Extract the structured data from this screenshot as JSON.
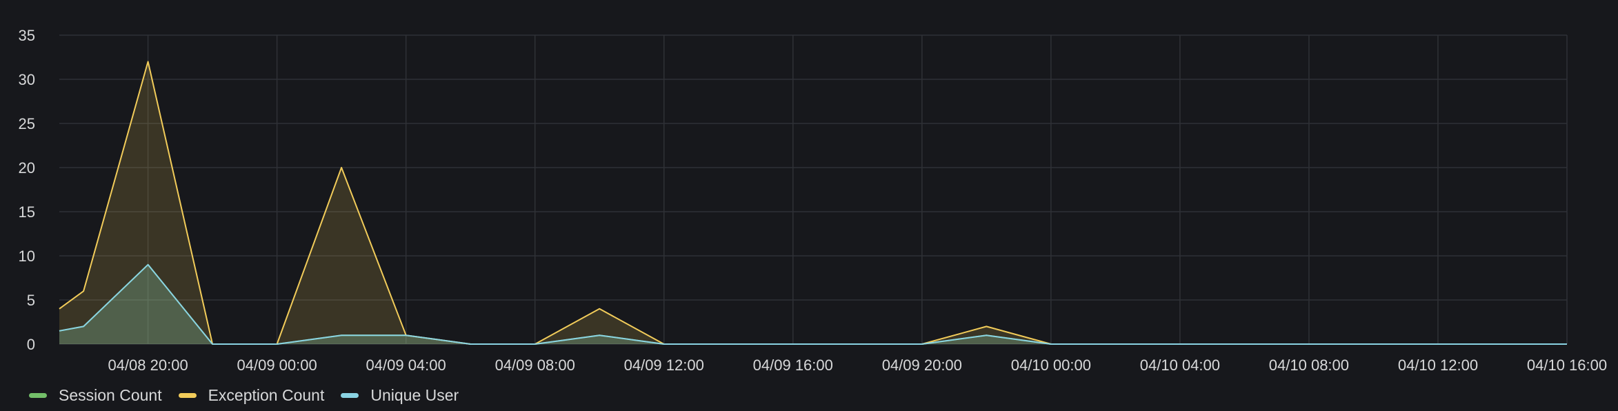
{
  "chart_data": {
    "type": "area",
    "title": "",
    "xlabel": "",
    "ylabel": "",
    "ylim": [
      0,
      35
    ],
    "yticks": [
      "0",
      "5",
      "10",
      "15",
      "20",
      "25",
      "30",
      "35"
    ],
    "xticks": [
      "04/08 20:00",
      "04/09 00:00",
      "04/09 04:00",
      "04/09 08:00",
      "04/09 12:00",
      "04/09 16:00",
      "04/09 20:00",
      "04/10 00:00",
      "04/10 04:00",
      "04/10 08:00",
      "04/10 12:00",
      "04/10 16:00"
    ],
    "x": [
      "04/08 17:15",
      "04/08 18:00",
      "04/08 20:00",
      "04/08 22:00",
      "04/09 00:00",
      "04/09 02:00",
      "04/09 04:00",
      "04/09 06:00",
      "04/09 08:00",
      "04/09 10:00",
      "04/09 12:00",
      "04/09 14:00",
      "04/09 16:00",
      "04/09 18:00",
      "04/09 20:00",
      "04/09 22:00",
      "04/10 00:00",
      "04/10 02:00",
      "04/10 04:00",
      "04/10 06:00",
      "04/10 08:00",
      "04/10 10:00",
      "04/10 12:00",
      "04/10 14:00",
      "04/10 16:00"
    ],
    "grid": true,
    "legend_position": "bottom-left",
    "series": [
      {
        "name": "Session Count",
        "color": "#73bf69",
        "values": [
          1.5,
          2,
          9,
          0,
          0,
          1,
          1,
          0,
          0,
          1,
          0,
          0,
          0,
          0,
          0,
          1,
          0,
          0,
          0,
          0,
          0,
          0,
          0,
          0,
          0
        ]
      },
      {
        "name": "Exception Count",
        "color": "#f2cc5a",
        "values": [
          4,
          6,
          32,
          0,
          0,
          20,
          1,
          0,
          0,
          4,
          0,
          0,
          0,
          0,
          0,
          2,
          0,
          0,
          0,
          0,
          0,
          0,
          0,
          0,
          0
        ]
      },
      {
        "name": "Unique User",
        "color": "#8ad3e3",
        "values": [
          1.5,
          2,
          9,
          0,
          0,
          1,
          1,
          0,
          0,
          1,
          0,
          0,
          0,
          0,
          0,
          1,
          0,
          0,
          0,
          0,
          0,
          0,
          0,
          0,
          0
        ]
      }
    ]
  }
}
